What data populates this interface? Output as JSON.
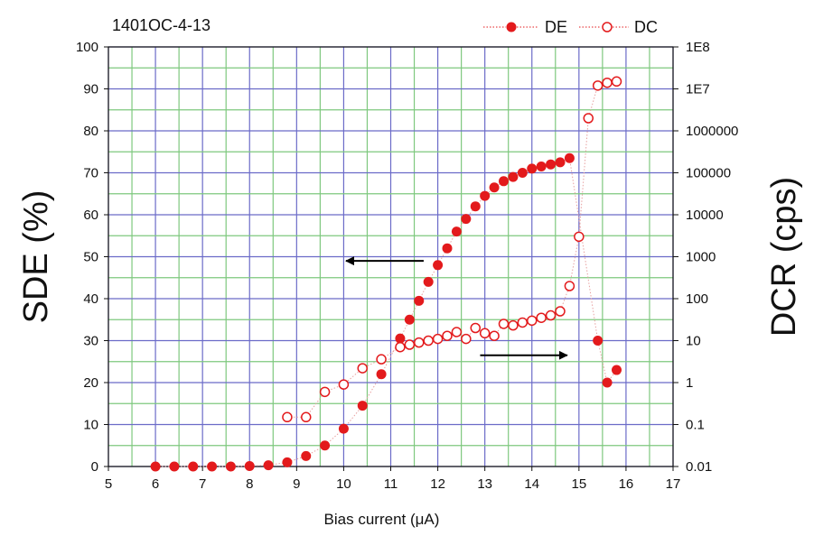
{
  "chart_data": {
    "type": "scatter",
    "title": "1401OC-4-13",
    "xlabel": "Bias current (μA)",
    "ylabel_left": "SDE (%)",
    "ylabel_right": "DCR (cps)",
    "xlim": [
      5,
      17
    ],
    "ylim_left": [
      0,
      100
    ],
    "ylim_right": [
      0.01,
      100000000
    ],
    "right_axis_scale": "log",
    "grid": true,
    "legend_position": "top-right",
    "x_ticks": [
      "5",
      "6",
      "7",
      "8",
      "9",
      "10",
      "11",
      "12",
      "13",
      "14",
      "15",
      "16",
      "17"
    ],
    "y_left_ticks": [
      "0",
      "10",
      "20",
      "30",
      "40",
      "50",
      "60",
      "70",
      "80",
      "90",
      "100"
    ],
    "y_right_ticks": [
      "0.01",
      "0.1",
      "1",
      "10",
      "100",
      "1000",
      "10000",
      "100000",
      "1000000",
      "1E7",
      "1E8"
    ],
    "series": [
      {
        "name": "DE",
        "axis": "left",
        "marker": "filled-circle",
        "color": "#e31a1c",
        "x": [
          6.0,
          6.4,
          6.8,
          7.2,
          7.6,
          8.0,
          8.4,
          8.8,
          9.2,
          9.6,
          10.0,
          10.4,
          10.8,
          11.2,
          11.4,
          11.6,
          11.8,
          12.0,
          12.2,
          12.4,
          12.6,
          12.8,
          13.0,
          13.2,
          13.4,
          13.6,
          13.8,
          14.0,
          14.2,
          14.4,
          14.6,
          14.8,
          15.4,
          15.6,
          15.8
        ],
        "y": [
          0,
          0,
          0,
          0,
          0,
          0.1,
          0.3,
          1,
          2.5,
          5,
          9,
          14.5,
          22,
          30.5,
          35,
          39.5,
          44,
          48,
          52,
          56,
          59,
          62,
          64.5,
          66.5,
          68,
          69,
          70,
          71,
          71.5,
          72,
          72.5,
          73.5,
          30,
          20,
          23
        ]
      },
      {
        "name": "DC",
        "axis": "right",
        "marker": "open-circle",
        "color": "#e31a1c",
        "x": [
          8.8,
          9.2,
          9.6,
          10.0,
          10.4,
          10.8,
          11.2,
          11.4,
          11.6,
          11.8,
          12.0,
          12.2,
          12.4,
          12.6,
          12.8,
          13.0,
          13.2,
          13.4,
          13.6,
          13.8,
          14.0,
          14.2,
          14.4,
          14.6,
          14.8,
          15.0,
          15.2,
          15.4,
          15.6,
          15.8
        ],
        "y": [
          0.15,
          0.15,
          0.6,
          0.9,
          2.2,
          3.6,
          7,
          8,
          9,
          10,
          11,
          13,
          16,
          11,
          20,
          15,
          13,
          25,
          23,
          27,
          30,
          35,
          40,
          50,
          200,
          3000,
          2000000,
          12000000,
          14000000,
          15000000
        ]
      }
    ]
  },
  "colors": {
    "series": "#e31a1c",
    "grid_blue": "#6b6bc8",
    "grid_green": "#7ec87e",
    "axis": "#111111",
    "arrow": "#000000"
  }
}
